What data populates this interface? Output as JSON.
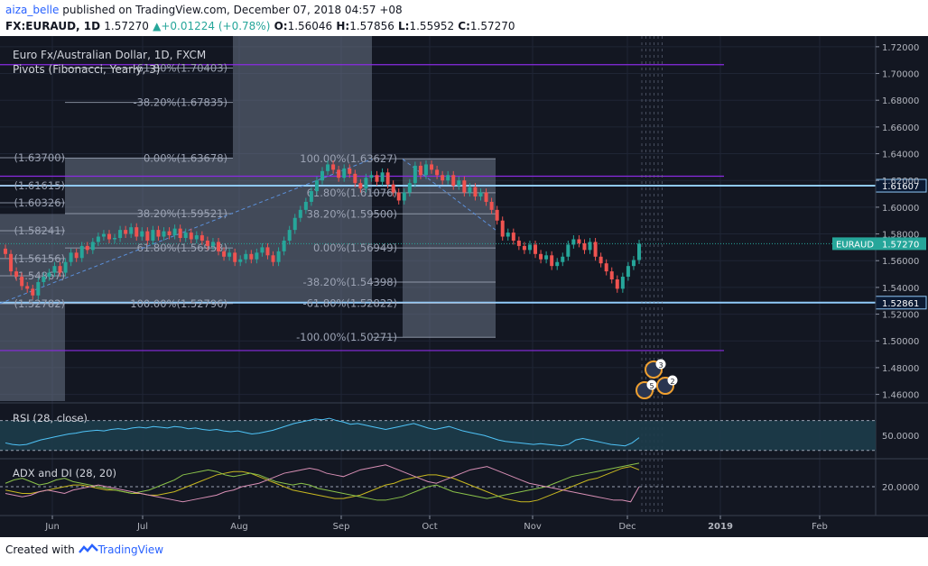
{
  "header": {
    "author": "aiza_belle",
    "published_text": "published on TradingView.com, December 07, 2018 04:57 +08",
    "symbol": "FX:EURAUD, 1D",
    "last": "1.57270",
    "change": "+0.01224 (+0.78%)",
    "open_label": "O:",
    "open": "1.56046",
    "high_label": "H:",
    "high": "1.57856",
    "low_label": "L:",
    "low": "1.55952",
    "close_label": "C:",
    "close": "1.57270"
  },
  "legend": {
    "title": "Euro Fx/Australian Dollar, 1D, FXCM",
    "indicator": "Pivots (Fibonacci, Yearly, 3)"
  },
  "footer": {
    "created_with": "Created with",
    "brand": "TradingView"
  },
  "colors": {
    "background": "#131722",
    "grid": "#1f2535",
    "up": "#26a69a",
    "down": "#ef5350",
    "pivot_line": "#8a2be2",
    "sr_line": "#90caf9",
    "fib": "#9ca3b4",
    "box": "#6a7487",
    "rsi": "#4fc3f7",
    "adx": "#c8b820",
    "di_plus": "#8bc34a",
    "di_minus": "#d88fb5",
    "price_label": "#26a69a"
  },
  "chart_data": [
    {
      "type": "candlestick",
      "title": "Euro Fx/Australian Dollar, 1D, FXCM",
      "x_ticks": [
        "Jun",
        "Jul",
        "Aug",
        "Sep",
        "Oct",
        "Nov",
        "Dec",
        "2019",
        "Feb"
      ],
      "y_ticks": [
        "1.72000",
        "1.70000",
        "1.68000",
        "1.66000",
        "1.64000",
        "1.62000",
        "1.60000",
        "1.58000",
        "1.56000",
        "1.54000",
        "1.52000",
        "1.50000",
        "1.48000",
        "1.46000"
      ],
      "ylim": [
        1.455,
        1.728
      ],
      "horizontal_lines": [
        {
          "value": 1.7066,
          "kind": "pivot"
        },
        {
          "value": 1.6232,
          "kind": "pivot"
        },
        {
          "value": 1.4928,
          "kind": "pivot"
        },
        {
          "value": 1.61607,
          "kind": "support_resistance",
          "label": "1.61607"
        },
        {
          "value": 1.52861,
          "kind": "support_resistance",
          "label": "1.52861"
        }
      ],
      "price_label": {
        "name": "EURAUD",
        "value": "1.57270"
      },
      "fib_groups": [
        {
          "levels": [
            {
              "label": "-61.80%(1.70403)",
              "value": 1.70403
            },
            {
              "label": "-38.20%(1.67835)",
              "value": 1.67835
            },
            {
              "label": "0.00%(1.63678)",
              "value": 1.63678
            },
            {
              "label": "38.20%(1.59521)",
              "value": 1.59521
            },
            {
              "label": "61.80%(1.56953)",
              "value": 1.56953
            },
            {
              "label": "100.00%(1.52796)",
              "value": 1.52796
            }
          ]
        },
        {
          "levels": [
            {
              "label": "100.00%(1.63627)",
              "value": 1.63627
            },
            {
              "label": "61.80%(1.61076)",
              "value": 1.61076
            },
            {
              "label": "38.20%(1.59500)",
              "value": 1.595
            },
            {
              "label": "0.00%(1.56949)",
              "value": 1.56949
            },
            {
              "label": "-38.20%(1.54398)",
              "value": 1.54398
            },
            {
              "label": "-61.80%(1.52822)",
              "value": 1.52822
            },
            {
              "label": "-100.00%(1.50271)",
              "value": 1.50271
            }
          ]
        },
        {
          "levels": [
            {
              "label": "(1.63700)",
              "value": 1.637
            },
            {
              "label": "(1.61615)",
              "value": 1.61615
            },
            {
              "label": "(1.60326)",
              "value": 1.60326
            },
            {
              "label": "(1.58241)",
              "value": 1.58241
            },
            {
              "label": "(1.56156)",
              "value": 1.56156
            },
            {
              "label": "(1.54867)",
              "value": 1.54867
            },
            {
              "label": "(1.52782)",
              "value": 1.52782
            }
          ]
        }
      ],
      "events": [
        "5",
        "3",
        "2"
      ],
      "closes": [
        1.565,
        1.552,
        1.548,
        1.541,
        1.539,
        1.534,
        1.544,
        1.548,
        1.551,
        1.556,
        1.551,
        1.559,
        1.566,
        1.562,
        1.571,
        1.568,
        1.574,
        1.578,
        1.58,
        1.576,
        1.577,
        1.583,
        1.58,
        1.585,
        1.578,
        1.582,
        1.575,
        1.583,
        1.578,
        1.582,
        1.579,
        1.584,
        1.577,
        1.581,
        1.576,
        1.579,
        1.575,
        1.571,
        1.574,
        1.567,
        1.563,
        1.566,
        1.559,
        1.561,
        1.565,
        1.561,
        1.566,
        1.57,
        1.564,
        1.559,
        1.567,
        1.575,
        1.583,
        1.592,
        1.598,
        1.604,
        1.612,
        1.62,
        1.627,
        1.632,
        1.628,
        1.622,
        1.629,
        1.625,
        1.618,
        1.614,
        1.622,
        1.624,
        1.619,
        1.626,
        1.617,
        1.611,
        1.605,
        1.611,
        1.618,
        1.631,
        1.624,
        1.632,
        1.628,
        1.624,
        1.62,
        1.624,
        1.616,
        1.62,
        1.611,
        1.615,
        1.608,
        1.611,
        1.604,
        1.598,
        1.59,
        1.578,
        1.581,
        1.575,
        1.571,
        1.568,
        1.572,
        1.565,
        1.561,
        1.564,
        1.556,
        1.559,
        1.563,
        1.572,
        1.576,
        1.573,
        1.568,
        1.574,
        1.563,
        1.558,
        1.552,
        1.546,
        1.539,
        1.548,
        1.556,
        1.5605,
        1.5727
      ]
    },
    {
      "type": "line",
      "title": "RSI (28, close)",
      "y_ticks": [
        "50.0000"
      ],
      "ylim": [
        20,
        90
      ],
      "bands": [
        70,
        30
      ],
      "values": [
        40,
        38,
        37,
        38,
        41,
        44,
        46,
        48,
        50,
        52,
        53,
        55,
        56,
        57,
        56,
        58,
        59,
        58,
        60,
        61,
        60,
        62,
        61,
        60,
        62,
        61,
        59,
        60,
        58,
        57,
        58,
        56,
        55,
        56,
        54,
        52,
        53,
        55,
        57,
        60,
        63,
        66,
        68,
        70,
        72,
        71,
        73,
        70,
        68,
        65,
        66,
        64,
        62,
        60,
        58,
        60,
        62,
        64,
        66,
        63,
        60,
        58,
        60,
        62,
        59,
        56,
        54,
        52,
        50,
        47,
        44,
        42,
        41,
        40,
        39,
        38,
        39,
        38,
        37,
        36,
        38,
        44,
        46,
        44,
        42,
        40,
        38,
        37,
        36,
        40,
        47
      ]
    },
    {
      "type": "line",
      "title": "ADX and DI (28, 20)",
      "y_ticks": [
        "20.0000"
      ],
      "ylim": [
        5,
        35
      ],
      "series": [
        {
          "values": [
            18,
            17,
            16,
            16,
            17,
            18,
            19,
            20,
            21,
            21,
            20,
            19,
            18,
            18,
            17,
            16,
            16,
            15,
            15,
            16,
            17,
            19,
            21,
            23,
            25,
            27,
            28,
            29,
            29,
            28,
            26,
            24,
            22,
            20,
            18,
            17,
            16,
            15,
            14,
            13,
            13,
            14,
            15,
            17,
            19,
            21,
            22,
            24,
            25,
            26,
            27,
            27,
            26,
            25,
            23,
            21,
            19,
            17,
            15,
            13,
            12,
            11,
            11,
            12,
            14,
            16,
            18,
            20,
            22,
            24,
            25,
            27,
            29,
            31,
            32,
            30
          ]
        },
        {
          "values": [
            22,
            24,
            25,
            23,
            21,
            22,
            24,
            25,
            23,
            22,
            21,
            20,
            19,
            18,
            17,
            16,
            17,
            18,
            20,
            22,
            24,
            27,
            28,
            29,
            30,
            29,
            27,
            26,
            27,
            28,
            27,
            25,
            23,
            22,
            21,
            22,
            21,
            19,
            18,
            17,
            16,
            15,
            14,
            13,
            12,
            12,
            13,
            14,
            16,
            18,
            20,
            21,
            19,
            17,
            16,
            15,
            14,
            13,
            14,
            15,
            16,
            17,
            18,
            19,
            20,
            22,
            24,
            26,
            27,
            28,
            29,
            30,
            31,
            32,
            33,
            34
          ]
        },
        {
          "values": [
            16,
            15,
            14,
            15,
            17,
            18,
            17,
            16,
            18,
            19,
            20,
            21,
            20,
            19,
            18,
            17,
            16,
            15,
            14,
            13,
            12,
            11,
            12,
            13,
            14,
            15,
            17,
            18,
            20,
            21,
            22,
            24,
            26,
            28,
            29,
            30,
            31,
            30,
            28,
            27,
            26,
            28,
            30,
            31,
            32,
            33,
            31,
            29,
            27,
            25,
            23,
            22,
            24,
            26,
            28,
            30,
            31,
            32,
            30,
            28,
            26,
            24,
            22,
            21,
            20,
            19,
            18,
            17,
            16,
            15,
            14,
            13,
            12,
            12,
            11,
            20
          ]
        }
      ]
    }
  ]
}
